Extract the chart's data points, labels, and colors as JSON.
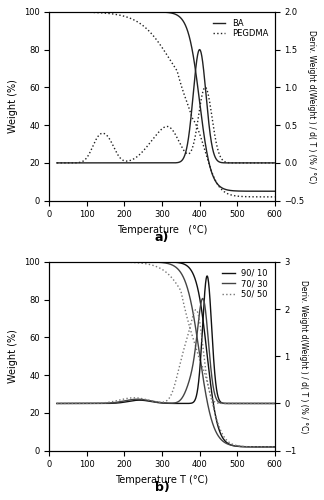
{
  "fig_width": 3.24,
  "fig_height": 5.0,
  "dpi": 100,
  "background_color": "#ffffff",
  "panel_a": {
    "xlabel": "Temperature   (°C)",
    "ylabel_left": "Weight (%)",
    "ylabel_right": "Deriv. Weight d(Weight ) / d( T ) (% / °C)",
    "xlim": [
      0,
      600
    ],
    "ylim_left": [
      0,
      100
    ],
    "ylim_right": [
      -0.5,
      2.0
    ],
    "label": "a)",
    "legend": [
      "BA",
      "PEGDMA"
    ],
    "yticks_left": [
      0,
      20,
      40,
      60,
      80,
      100
    ],
    "yticks_right": [
      -0.5,
      0.0,
      0.5,
      1.0,
      1.5,
      2.0
    ],
    "xticks": [
      0,
      100,
      200,
      300,
      400,
      500,
      600
    ]
  },
  "panel_b": {
    "xlabel": "Temperature T (°C)",
    "ylabel_left": "Weight (%)",
    "ylabel_right": "Deriv. Weight d(Weight ) / d( T ) (% / °C)",
    "xlim": [
      0,
      600
    ],
    "ylim_left": [
      0,
      100
    ],
    "ylim_right": [
      -1.0,
      3.0
    ],
    "label": "b)",
    "legend": [
      "90/ 10",
      "70/ 30",
      "50/ 50"
    ],
    "yticks_left": [
      0,
      20,
      40,
      60,
      80,
      100
    ],
    "yticks_right": [
      -1,
      0,
      1,
      2,
      3
    ],
    "xticks": [
      0,
      100,
      200,
      300,
      400,
      500,
      600
    ]
  }
}
